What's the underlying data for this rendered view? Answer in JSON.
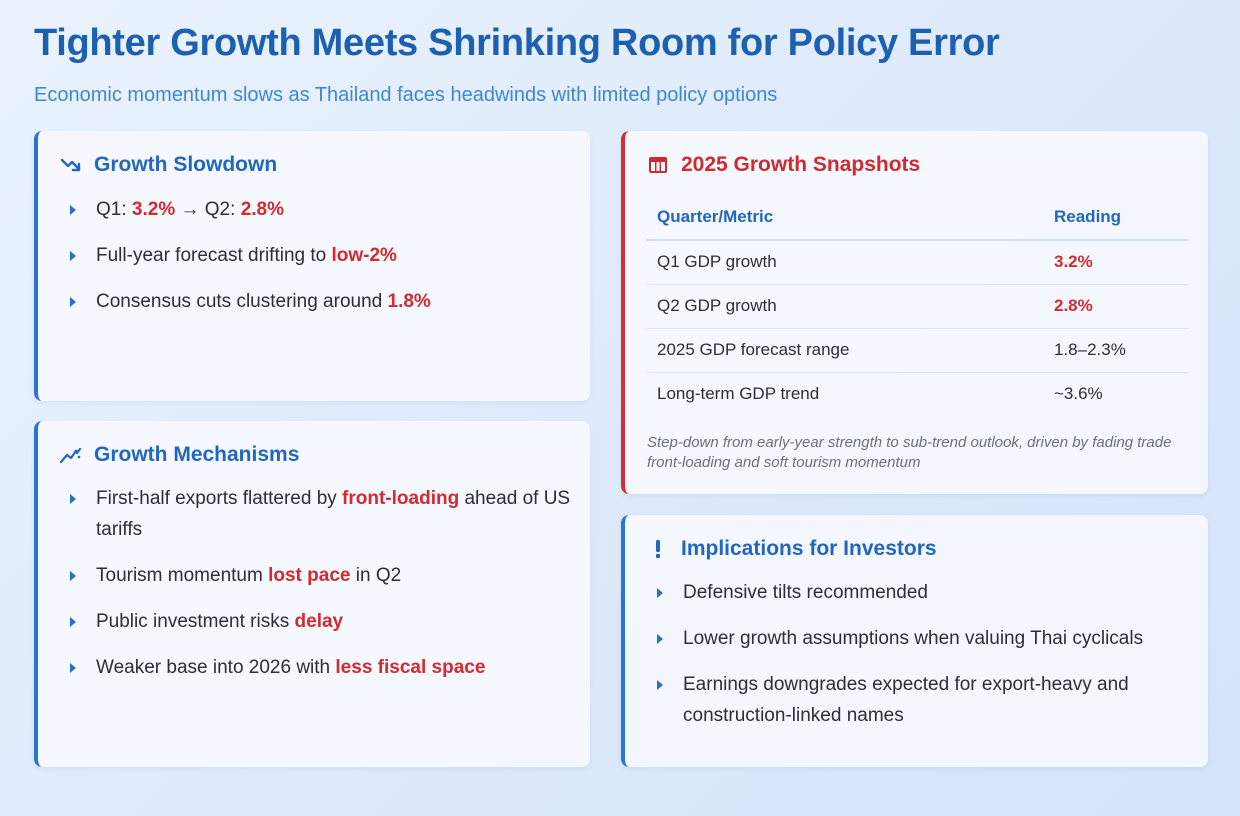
{
  "header": {
    "title": "Tighter Growth Meets Shrinking Room for Policy Error",
    "subtitle": "Economic momentum slows as Thailand faces headwinds with limited policy options"
  },
  "growth_slowdown": {
    "title": "Growth Slowdown",
    "icon": "trending-down-icon",
    "items": [
      {
        "a": "Q1: ",
        "b": "3.2%",
        "c": " → Q2: ",
        "d": "2.8%"
      },
      {
        "a": "Full-year forecast drifting to ",
        "b": "low-2%"
      },
      {
        "a": "Consensus cuts clustering around ",
        "b": "1.8%"
      }
    ]
  },
  "growth_mechanisms": {
    "title": "Growth Mechanisms",
    "icon": "line-chart-icon",
    "items": [
      {
        "a": "First-half exports flattered by ",
        "b": "front-loading",
        "c": " ahead of US tariffs"
      },
      {
        "a": "Tourism momentum ",
        "b": "lost pace",
        "c": " in Q2"
      },
      {
        "a": "Public investment risks ",
        "b": "delay",
        "c": ""
      },
      {
        "a": "Weaker base into 2026 with ",
        "b": "less fiscal space",
        "c": ""
      }
    ]
  },
  "snapshots": {
    "title": "2025 Growth Snapshots",
    "icon": "table-icon",
    "col_metric": "Quarter/Metric",
    "col_reading": "Reading",
    "rows": [
      {
        "metric": "Q1 GDP growth",
        "reading": "3.2%"
      },
      {
        "metric": "Q2 GDP growth",
        "reading": "2.8%"
      },
      {
        "metric": "2025 GDP forecast range",
        "reading": "1.8–2.3%"
      },
      {
        "metric": "Long-term GDP trend",
        "reading": "~3.6%"
      }
    ],
    "note": "Step-down from early-year strength to sub-trend outlook, driven by fading trade front-loading and soft tourism momentum"
  },
  "implications": {
    "title": "Implications for Investors",
    "icon": "exclamation-icon",
    "items": [
      "Defensive tilts recommended",
      "Lower growth assumptions when valuing Thai cyclicals",
      "Earnings downgrades expected for export-heavy and construction-linked names"
    ]
  },
  "colors": {
    "accent_blue": "#2166bf",
    "accent_red": "#d42a2f"
  }
}
